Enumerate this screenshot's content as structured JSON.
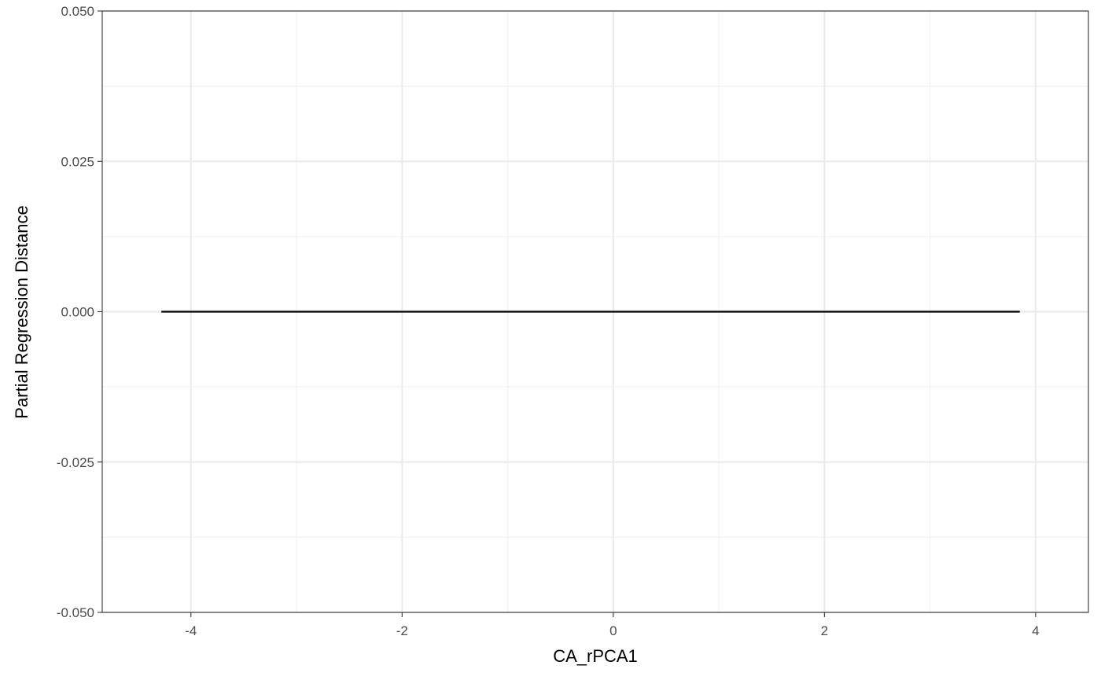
{
  "chart_data": {
    "type": "line",
    "title": "",
    "xlabel": "CA_rPCA1",
    "ylabel": "Partial Regression Distance",
    "xlim": [
      -4.84,
      4.5
    ],
    "ylim": [
      -0.05,
      0.05
    ],
    "x_ticks": [
      -4,
      -2,
      0,
      2,
      4
    ],
    "x_tick_labels": [
      "-4",
      "-2",
      "0",
      "2",
      "4"
    ],
    "x_minor_ticks": [
      -3,
      -1,
      1,
      3
    ],
    "y_ticks": [
      -0.05,
      -0.025,
      0,
      0.025,
      0.05
    ],
    "y_tick_labels": [
      "-0.050",
      "-0.025",
      "0.000",
      "0.025",
      "0.050"
    ],
    "y_minor_ticks": [
      -0.0375,
      -0.0125,
      0.0125,
      0.0375
    ],
    "grid": true,
    "series": [
      {
        "x": [
          -4.28,
          3.85
        ],
        "y": [
          0,
          0
        ],
        "color": "#000000"
      }
    ]
  }
}
